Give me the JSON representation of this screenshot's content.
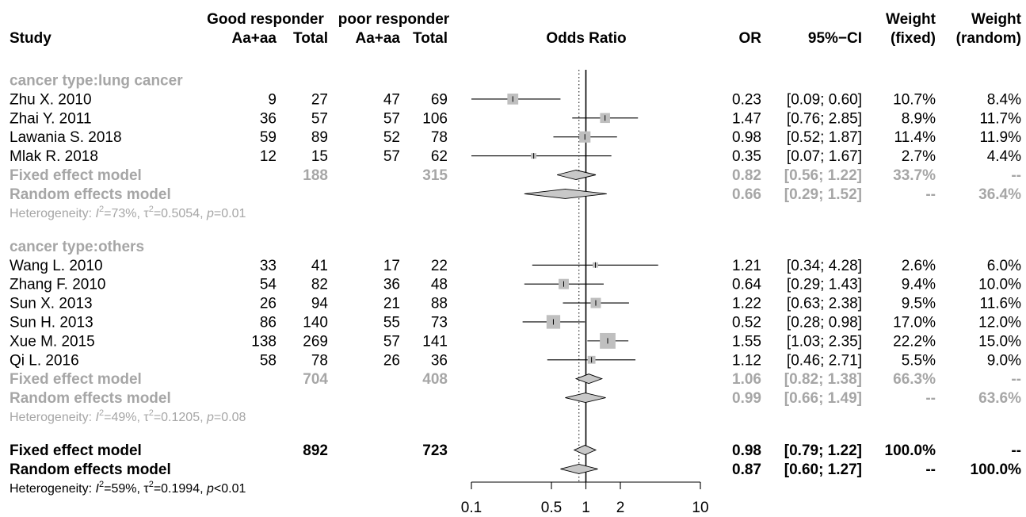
{
  "columns": {
    "super_good": "Good responder",
    "super_poor": "poor responder",
    "study": "Study",
    "good_events": "Aa+aa",
    "good_total": "Total",
    "poor_events": "Aa+aa",
    "poor_total": "Total",
    "plot": "Odds Ratio",
    "or": "OR",
    "ci": "95%−CI",
    "weight_top": "Weight",
    "w_fixed": "(fixed)",
    "w_random": "(random)"
  },
  "chart_data": {
    "type": "forest",
    "x_scale": "log",
    "xlim": [
      0.1,
      10
    ],
    "x_ticks": [
      0.1,
      0.5,
      1,
      2,
      10
    ],
    "x_tick_labels": [
      "0.1",
      "0.5",
      "1",
      "2",
      "10"
    ],
    "reference_line": 1,
    "pooled_dotted_line": 0.87,
    "colors": {
      "subgroup_text": "#a6a6a6",
      "square_fill": "#bfbfbf",
      "diamond_fill": "#c8c8c8"
    },
    "subgroups": [
      {
        "label": "cancer type:lung cancer",
        "studies": [
          {
            "study": "Zhu X. 2010",
            "good_events": "9",
            "good_total": "27",
            "poor_events": "47",
            "poor_total": "69",
            "or": 0.23,
            "lo": 0.09,
            "hi": 0.6,
            "or_text": "0.23",
            "ci_text": "[0.09; 0.60]",
            "w_fixed": "10.7%",
            "w_random": "8.4%",
            "w": 10.7
          },
          {
            "study": "Zhai Y. 2011",
            "good_events": "36",
            "good_total": "57",
            "poor_events": "57",
            "poor_total": "106",
            "or": 1.47,
            "lo": 0.76,
            "hi": 2.85,
            "or_text": "1.47",
            "ci_text": "[0.76; 2.85]",
            "w_fixed": "8.9%",
            "w_random": "11.7%",
            "w": 8.9
          },
          {
            "study": "Lawania S. 2018",
            "good_events": "59",
            "good_total": "89",
            "poor_events": "52",
            "poor_total": "78",
            "or": 0.98,
            "lo": 0.52,
            "hi": 1.87,
            "or_text": "0.98",
            "ci_text": "[0.52; 1.87]",
            "w_fixed": "11.4%",
            "w_random": "11.9%",
            "w": 11.4
          },
          {
            "study": "Mlak R. 2018",
            "good_events": "12",
            "good_total": "15",
            "poor_events": "57",
            "poor_total": "62",
            "or": 0.35,
            "lo": 0.07,
            "hi": 1.67,
            "or_text": "0.35",
            "ci_text": "[0.07; 1.67]",
            "w_fixed": "2.7%",
            "w_random": "4.4%",
            "w": 2.7
          }
        ],
        "fixed": {
          "label": "Fixed effect model",
          "good_total": "188",
          "poor_total": "315",
          "or": 0.82,
          "lo": 0.56,
          "hi": 1.22,
          "or_text": "0.82",
          "ci_text": "[0.56; 1.22]",
          "w_fixed": "33.7%",
          "w_random": "--"
        },
        "random": {
          "label": "Random effects model",
          "or": 0.66,
          "lo": 0.29,
          "hi": 1.52,
          "or_text": "0.66",
          "ci_text": "[0.29; 1.52]",
          "w_fixed": "--",
          "w_random": "36.4%"
        },
        "het": {
          "i2": "73%",
          "tau2": "0.5054",
          "pval": "0.01",
          "p_op": "="
        }
      },
      {
        "label": "cancer type:others",
        "studies": [
          {
            "study": "Wang L. 2010",
            "good_events": "33",
            "good_total": "41",
            "poor_events": "17",
            "poor_total": "22",
            "or": 1.21,
            "lo": 0.34,
            "hi": 4.28,
            "or_text": "1.21",
            "ci_text": "[0.34; 4.28]",
            "w_fixed": "2.6%",
            "w_random": "6.0%",
            "w": 2.6
          },
          {
            "study": "Zhang F. 2010",
            "good_events": "54",
            "good_total": "82",
            "poor_events": "36",
            "poor_total": "48",
            "or": 0.64,
            "lo": 0.29,
            "hi": 1.43,
            "or_text": "0.64",
            "ci_text": "[0.29; 1.43]",
            "w_fixed": "9.4%",
            "w_random": "10.0%",
            "w": 9.4
          },
          {
            "study": "Sun X. 2013",
            "good_events": "26",
            "good_total": "94",
            "poor_events": "21",
            "poor_total": "88",
            "or": 1.22,
            "lo": 0.63,
            "hi": 2.38,
            "or_text": "1.22",
            "ci_text": "[0.63; 2.38]",
            "w_fixed": "9.5%",
            "w_random": "11.6%",
            "w": 9.5
          },
          {
            "study": "Sun H. 2013",
            "good_events": "86",
            "good_total": "140",
            "poor_events": "55",
            "poor_total": "73",
            "or": 0.52,
            "lo": 0.28,
            "hi": 0.98,
            "or_text": "0.52",
            "ci_text": "[0.28; 0.98]",
            "w_fixed": "17.0%",
            "w_random": "12.0%",
            "w": 17.0
          },
          {
            "study": "Xue M. 2015",
            "good_events": "138",
            "good_total": "269",
            "poor_events": "57",
            "poor_total": "141",
            "or": 1.55,
            "lo": 1.03,
            "hi": 2.35,
            "or_text": "1.55",
            "ci_text": "[1.03; 2.35]",
            "w_fixed": "22.2%",
            "w_random": "15.0%",
            "w": 22.2
          },
          {
            "study": "Qi L. 2016",
            "good_events": "58",
            "good_total": "78",
            "poor_events": "26",
            "poor_total": "36",
            "or": 1.12,
            "lo": 0.46,
            "hi": 2.71,
            "or_text": "1.12",
            "ci_text": "[0.46; 2.71]",
            "w_fixed": "5.5%",
            "w_random": "9.0%",
            "w": 5.5
          }
        ],
        "fixed": {
          "label": "Fixed effect model",
          "good_total": "704",
          "poor_total": "408",
          "or": 1.06,
          "lo": 0.82,
          "hi": 1.38,
          "or_text": "1.06",
          "ci_text": "[0.82; 1.38]",
          "w_fixed": "66.3%",
          "w_random": "--"
        },
        "random": {
          "label": "Random effects model",
          "or": 0.99,
          "lo": 0.66,
          "hi": 1.49,
          "or_text": "0.99",
          "ci_text": "[0.66; 1.49]",
          "w_fixed": "--",
          "w_random": "63.6%"
        },
        "het": {
          "i2": "49%",
          "tau2": "0.1205",
          "pval": "0.08",
          "p_op": "="
        }
      }
    ],
    "overall": {
      "fixed": {
        "label": "Fixed effect model",
        "good_total": "892",
        "poor_total": "723",
        "or": 0.98,
        "lo": 0.79,
        "hi": 1.22,
        "or_text": "0.98",
        "ci_text": "[0.79; 1.22]",
        "w_fixed": "100.0%",
        "w_random": "--"
      },
      "random": {
        "label": "Random effects model",
        "or": 0.87,
        "lo": 0.6,
        "hi": 1.27,
        "or_text": "0.87",
        "ci_text": "[0.60; 1.27]",
        "w_fixed": "--",
        "w_random": "100.0%"
      },
      "het": {
        "i2": "59%",
        "tau2": "0.1994",
        "pval": "0.01",
        "p_op": "<"
      }
    }
  }
}
